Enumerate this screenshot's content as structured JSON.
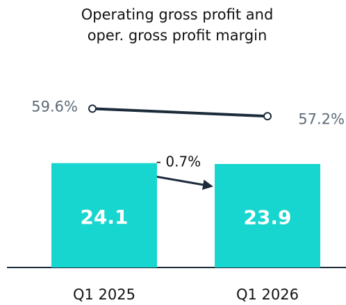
{
  "chart_data": {
    "type": "bar",
    "title": [
      "Operating gross profit and",
      "oper. gross profit margin"
    ],
    "categories": [
      "Q1 2025",
      "Q1 2026"
    ],
    "series": [
      {
        "color": "#17d6cf",
        "values": [
          24.1,
          23.9
        ]
      },
      {
        "color": "#1c2b3a",
        "values": [
          59.6,
          57.2
        ],
        "value_labels": [
          "59.6%",
          "57.2%"
        ],
        "axis": "y2"
      }
    ],
    "ylim": [
      0,
      30
    ],
    "y2lim": [
      50,
      72
    ],
    "annotations": [
      "- 0.7%"
    ]
  }
}
